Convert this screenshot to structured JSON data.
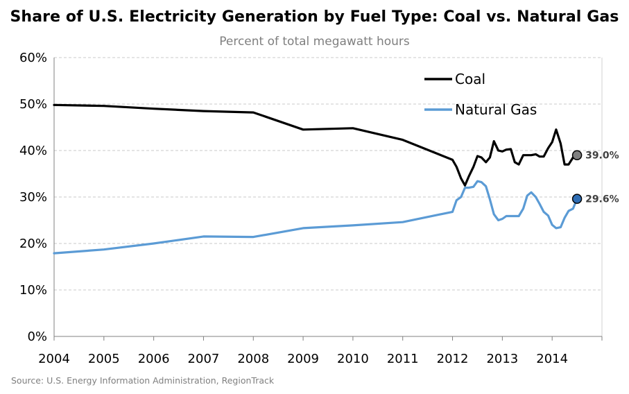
{
  "chart_data": {
    "type": "line",
    "title": "Share of U.S. Electricity Generation by Fuel Type: Coal vs. Natural Gas",
    "subtitle": "Percent of total megawatt hours",
    "source": "Source: U.S. Energy Information Administration, RegionTrack",
    "xlabel": "",
    "ylabel": "",
    "xlim": [
      2004,
      2015
    ],
    "ylim": [
      0,
      60
    ],
    "x_ticks": [
      "2004",
      "2005",
      "2006",
      "2007",
      "2008",
      "2009",
      "2010",
      "2011",
      "2012",
      "2013",
      "2014"
    ],
    "y_ticks": [
      "0%",
      "10%",
      "20%",
      "30%",
      "40%",
      "50%",
      "60%"
    ],
    "grid": "horizontal-dashed",
    "legend_position": "top-right",
    "series": [
      {
        "name": "Coal",
        "color": "#000000",
        "end_label": "39.0%",
        "marker_color": "#7f7f7f",
        "points": [
          [
            2004,
            49.8
          ],
          [
            2005,
            49.6
          ],
          [
            2006,
            49.0
          ],
          [
            2007,
            48.5
          ],
          [
            2008,
            48.2
          ],
          [
            2009,
            44.5
          ],
          [
            2010,
            44.8
          ],
          [
            2011,
            42.3
          ],
          [
            2012.0,
            38.0
          ],
          [
            2012.08,
            36.5
          ],
          [
            2012.17,
            34.0
          ],
          [
            2012.25,
            32.5
          ],
          [
            2012.33,
            34.5
          ],
          [
            2012.42,
            36.5
          ],
          [
            2012.5,
            38.8
          ],
          [
            2012.58,
            38.5
          ],
          [
            2012.67,
            37.5
          ],
          [
            2012.75,
            38.5
          ],
          [
            2012.83,
            42.0
          ],
          [
            2012.92,
            40.0
          ],
          [
            2013.0,
            39.8
          ],
          [
            2013.08,
            40.2
          ],
          [
            2013.17,
            40.3
          ],
          [
            2013.25,
            37.5
          ],
          [
            2013.33,
            37.0
          ],
          [
            2013.42,
            39.0
          ],
          [
            2013.5,
            39.0
          ],
          [
            2013.58,
            39.0
          ],
          [
            2013.67,
            39.2
          ],
          [
            2013.75,
            38.7
          ],
          [
            2013.83,
            38.7
          ],
          [
            2013.92,
            40.5
          ],
          [
            2014.0,
            41.8
          ],
          [
            2014.08,
            44.5
          ],
          [
            2014.17,
            41.5
          ],
          [
            2014.25,
            37.0
          ],
          [
            2014.33,
            37.0
          ],
          [
            2014.42,
            38.5
          ],
          [
            2014.5,
            39.0
          ]
        ]
      },
      {
        "name": "Natural Gas",
        "color": "#5b9bd5",
        "end_label": "29.6%",
        "marker_color": "#2e6db4",
        "points": [
          [
            2004,
            17.9
          ],
          [
            2005,
            18.7
          ],
          [
            2006,
            20.0
          ],
          [
            2007,
            21.5
          ],
          [
            2008,
            21.4
          ],
          [
            2009,
            23.3
          ],
          [
            2010,
            23.9
          ],
          [
            2011,
            24.6
          ],
          [
            2012.0,
            26.8
          ],
          [
            2012.08,
            29.3
          ],
          [
            2012.17,
            30.0
          ],
          [
            2012.25,
            32.0
          ],
          [
            2012.33,
            32.0
          ],
          [
            2012.42,
            32.2
          ],
          [
            2012.5,
            33.4
          ],
          [
            2012.58,
            33.2
          ],
          [
            2012.67,
            32.3
          ],
          [
            2012.75,
            29.5
          ],
          [
            2012.83,
            26.3
          ],
          [
            2012.92,
            25.0
          ],
          [
            2013.0,
            25.3
          ],
          [
            2013.08,
            25.9
          ],
          [
            2013.17,
            25.9
          ],
          [
            2013.25,
            25.9
          ],
          [
            2013.33,
            25.9
          ],
          [
            2013.42,
            27.5
          ],
          [
            2013.5,
            30.3
          ],
          [
            2013.58,
            31.0
          ],
          [
            2013.67,
            30.0
          ],
          [
            2013.75,
            28.5
          ],
          [
            2013.83,
            26.8
          ],
          [
            2013.92,
            26.0
          ],
          [
            2014.0,
            24.0
          ],
          [
            2014.08,
            23.3
          ],
          [
            2014.17,
            23.5
          ],
          [
            2014.25,
            25.5
          ],
          [
            2014.33,
            27.0
          ],
          [
            2014.42,
            27.5
          ],
          [
            2014.5,
            29.6
          ]
        ]
      }
    ]
  }
}
